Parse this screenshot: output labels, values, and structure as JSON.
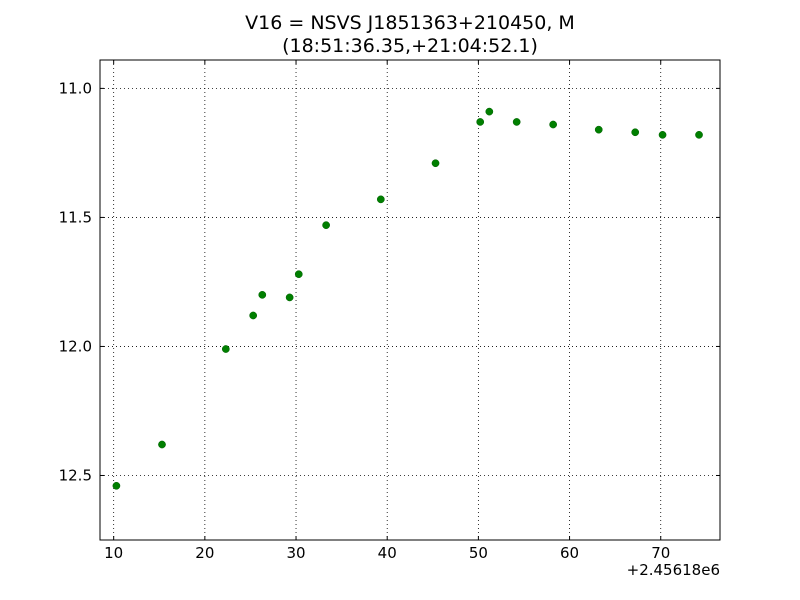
{
  "chart_data": {
    "type": "scatter",
    "title": "V16 = NSVS J1851363+210450, M",
    "subtitle": "(18:51:36.35,+21:04:52.1)",
    "xlabel": "",
    "ylabel": "",
    "x_offset_label": "+2.45618e6",
    "xlim": [
      8.5,
      76.5
    ],
    "ylim": [
      10.89,
      12.75
    ],
    "y_inverted": true,
    "grid": true,
    "marker_color": "#007f00",
    "x_ticks": [
      10,
      20,
      30,
      40,
      50,
      60,
      70
    ],
    "x_tick_labels": [
      "10",
      "20",
      "30",
      "40",
      "50",
      "60",
      "70"
    ],
    "y_ticks": [
      11.0,
      11.5,
      12.0,
      12.5
    ],
    "y_tick_labels": [
      "11.0",
      "11.5",
      "12.0",
      "12.5"
    ],
    "points": [
      {
        "x": 10.3,
        "y": 12.54
      },
      {
        "x": 15.3,
        "y": 12.38
      },
      {
        "x": 22.3,
        "y": 12.01
      },
      {
        "x": 25.3,
        "y": 11.88
      },
      {
        "x": 26.3,
        "y": 11.8
      },
      {
        "x": 29.3,
        "y": 11.81
      },
      {
        "x": 30.3,
        "y": 11.72
      },
      {
        "x": 33.3,
        "y": 11.53
      },
      {
        "x": 39.3,
        "y": 11.43
      },
      {
        "x": 45.3,
        "y": 11.29
      },
      {
        "x": 50.2,
        "y": 11.13
      },
      {
        "x": 51.2,
        "y": 11.09
      },
      {
        "x": 54.2,
        "y": 11.13
      },
      {
        "x": 58.2,
        "y": 11.14
      },
      {
        "x": 63.2,
        "y": 11.16
      },
      {
        "x": 67.2,
        "y": 11.17
      },
      {
        "x": 70.2,
        "y": 11.18
      },
      {
        "x": 74.2,
        "y": 11.18
      }
    ]
  }
}
